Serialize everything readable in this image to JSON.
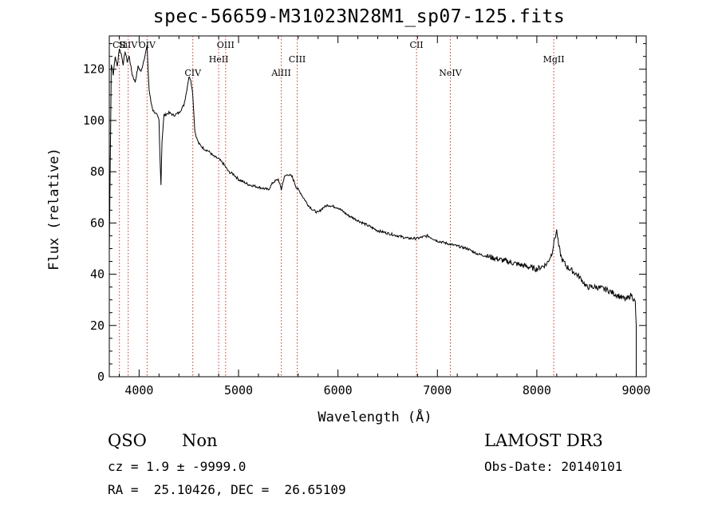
{
  "title": "spec-56659-M31023N28M1_sp07-125.fits",
  "chart_data": {
    "type": "line",
    "xlabel": "Wavelength (Å)",
    "ylabel": "Flux (relative)",
    "xlim": [
      3700,
      9100
    ],
    "ylim": [
      0,
      133
    ],
    "xticks": [
      "4000",
      "5000",
      "6000",
      "7000",
      "8000",
      "9000"
    ],
    "yticks": [
      "0",
      "20",
      "40",
      "60",
      "80",
      "100",
      "120"
    ],
    "grid": false,
    "series": [
      {
        "x": [
          3700,
          3720,
          3740,
          3760,
          3780,
          3800,
          3820,
          3840,
          3860,
          3880,
          3900,
          3930,
          3960,
          3990,
          4020,
          4050,
          4080,
          4100,
          4120,
          4140,
          4160,
          4180,
          4200,
          4210,
          4220,
          4230,
          4250,
          4300,
          4350,
          4400,
          4450,
          4480,
          4500,
          4520,
          4540,
          4560,
          4580,
          4600,
          4650,
          4700,
          4750,
          4800,
          4850,
          4900,
          4950,
          5000,
          5100,
          5200,
          5300,
          5350,
          5400,
          5430,
          5460,
          5500,
          5540,
          5580,
          5620,
          5650,
          5700,
          5750,
          5800,
          5850,
          5900,
          6000,
          6100,
          6200,
          6300,
          6400,
          6500,
          6600,
          6700,
          6800,
          6900,
          7000,
          7100,
          7200,
          7300,
          7400,
          7500,
          7600,
          7700,
          7800,
          7900,
          8000,
          8050,
          8100,
          8150,
          8180,
          8200,
          8220,
          8250,
          8300,
          8400,
          8450,
          8500,
          8600,
          8700,
          8750,
          8800,
          8850,
          8900,
          8950,
          8990,
          9000
        ],
        "y": [
          48,
          122,
          118,
          125,
          121,
          128,
          126,
          122,
          127,
          123,
          125,
          118,
          115,
          121,
          119,
          124,
          129,
          112,
          107,
          104,
          103,
          102,
          100,
          85,
          75,
          92,
          102,
          103,
          102,
          103,
          106,
          112,
          117,
          116,
          110,
          96,
          93,
          91,
          89,
          88,
          86,
          85,
          83,
          80,
          79,
          77,
          75,
          74,
          73,
          76,
          77,
          73,
          78,
          79,
          78,
          74,
          72,
          70,
          67,
          65,
          64,
          66,
          67,
          66,
          63,
          61,
          59,
          57,
          56,
          55,
          54,
          54,
          55,
          53,
          52,
          51,
          50,
          48,
          47,
          46,
          45,
          44,
          43,
          42,
          43,
          44,
          48,
          54,
          57,
          51,
          46,
          43,
          40,
          38,
          35,
          35,
          34,
          33,
          32,
          31,
          30,
          32,
          29,
          20
        ]
      }
    ],
    "lines": [
      {
        "label": "CII",
        "x": 3802
      },
      {
        "label": "SiIV",
        "x": 3890
      },
      {
        "label": "OIV",
        "x": 4080
      },
      {
        "label": "CIV",
        "x": 4540
      },
      {
        "label": "HeII",
        "x": 4800
      },
      {
        "label": "OIII",
        "x": 4870
      },
      {
        "label": "AlIII",
        "x": 5430
      },
      {
        "label": "CIII",
        "x": 5590
      },
      {
        "label": "CII",
        "x": 6790
      },
      {
        "label": "NeIV",
        "x": 7130
      },
      {
        "label": "MgII",
        "x": 8170
      }
    ]
  },
  "footer": {
    "class_label": "QSO",
    "subclass_label": "Non",
    "survey": "LAMOST DR3",
    "cz": "cz = 1.9 ± -9999.0",
    "obs_date": "Obs-Date: 20140101",
    "coords": "RA =  25.10426, DEC =  26.65109"
  },
  "colors": {
    "spectrum": "#000000",
    "line_marker": "#c0392b"
  }
}
